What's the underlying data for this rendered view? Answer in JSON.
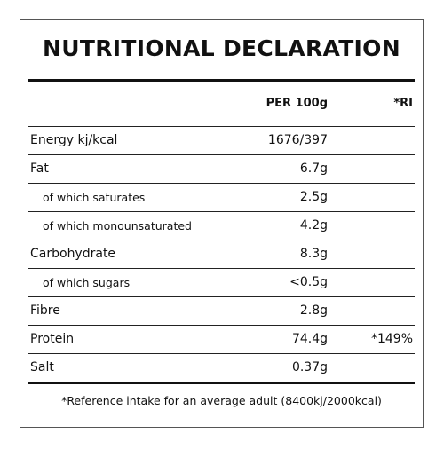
{
  "title": "NUTRITIONAL DECLARATION",
  "headers": {
    "per100g": "PER 100g",
    "ri": "*RI"
  },
  "rows": [
    {
      "label": "Energy kj/kcal",
      "value": "1676/397",
      "ri": "",
      "indent": false
    },
    {
      "label": "Fat",
      "value": "6.7g",
      "ri": "",
      "indent": false
    },
    {
      "label": "of which saturates",
      "value": "2.5g",
      "ri": "",
      "indent": true
    },
    {
      "label": "of which monounsaturated",
      "value": "4.2g",
      "ri": "",
      "indent": true
    },
    {
      "label": "Carbohydrate",
      "value": "8.3g",
      "ri": "",
      "indent": false
    },
    {
      "label": "of which sugars",
      "value": "<0.5g",
      "ri": "",
      "indent": true
    },
    {
      "label": "Fibre",
      "value": "2.8g",
      "ri": "",
      "indent": false
    },
    {
      "label": "Protein",
      "value": "74.4g",
      "ri": "*149%",
      "indent": false
    },
    {
      "label": "Salt",
      "value": "0.37g",
      "ri": "",
      "indent": false
    }
  ],
  "footnote": "*Reference intake for an average adult (8400kj/2000kcal)"
}
